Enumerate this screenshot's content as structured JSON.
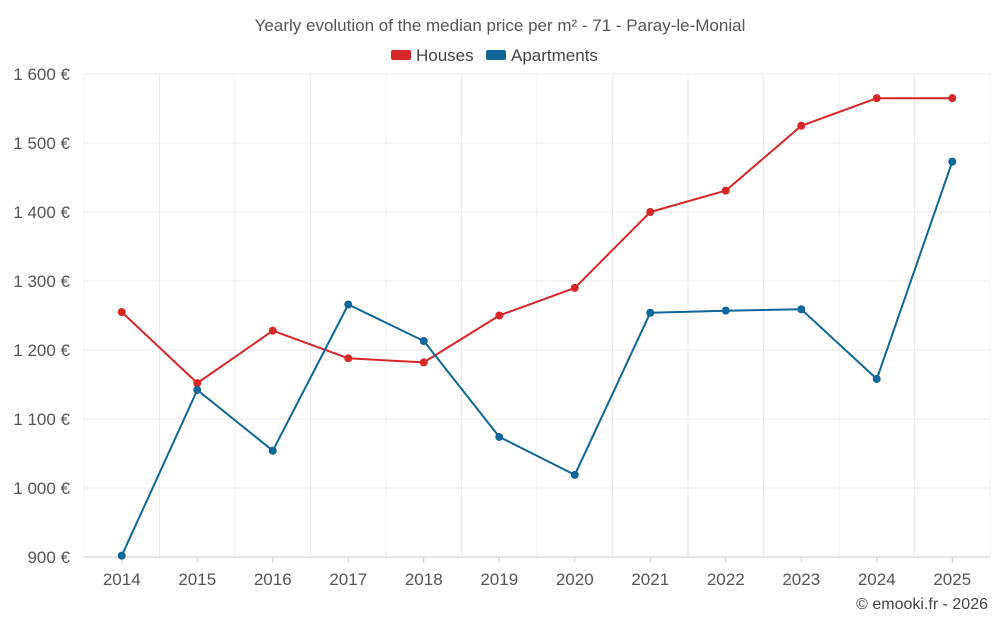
{
  "chart_data": {
    "type": "line",
    "title": "Yearly evolution of the median price per m² - 71 - Paray-le-Monial",
    "categories": [
      "2014",
      "2015",
      "2016",
      "2017",
      "2018",
      "2019",
      "2020",
      "2021",
      "2022",
      "2023",
      "2024",
      "2025"
    ],
    "series": [
      {
        "name": "Houses",
        "color": "#d62728",
        "values": [
          1255,
          1152,
          1228,
          1188,
          1182,
          1250,
          1290,
          1400,
          1431,
          1525,
          1565,
          1565
        ]
      },
      {
        "name": "Apartments",
        "color": "#0e6699",
        "values": [
          902,
          1142,
          1054,
          1266,
          1213,
          1074,
          1019,
          1254,
          1257,
          1259,
          1158,
          1473
        ]
      }
    ],
    "ylim": [
      900,
      1600
    ],
    "yticks": [
      900,
      1000,
      1100,
      1200,
      1300,
      1400,
      1500,
      1600
    ],
    "ytick_labels": [
      "900 €",
      "1 000 €",
      "1 100 €",
      "1 200 €",
      "1 300 €",
      "1 400 €",
      "1 500 €",
      "1 600 €"
    ],
    "xlabel": "",
    "ylabel": "",
    "grid": true,
    "legend_position": "top-center"
  },
  "credit": "© emooki.fr - 2026"
}
